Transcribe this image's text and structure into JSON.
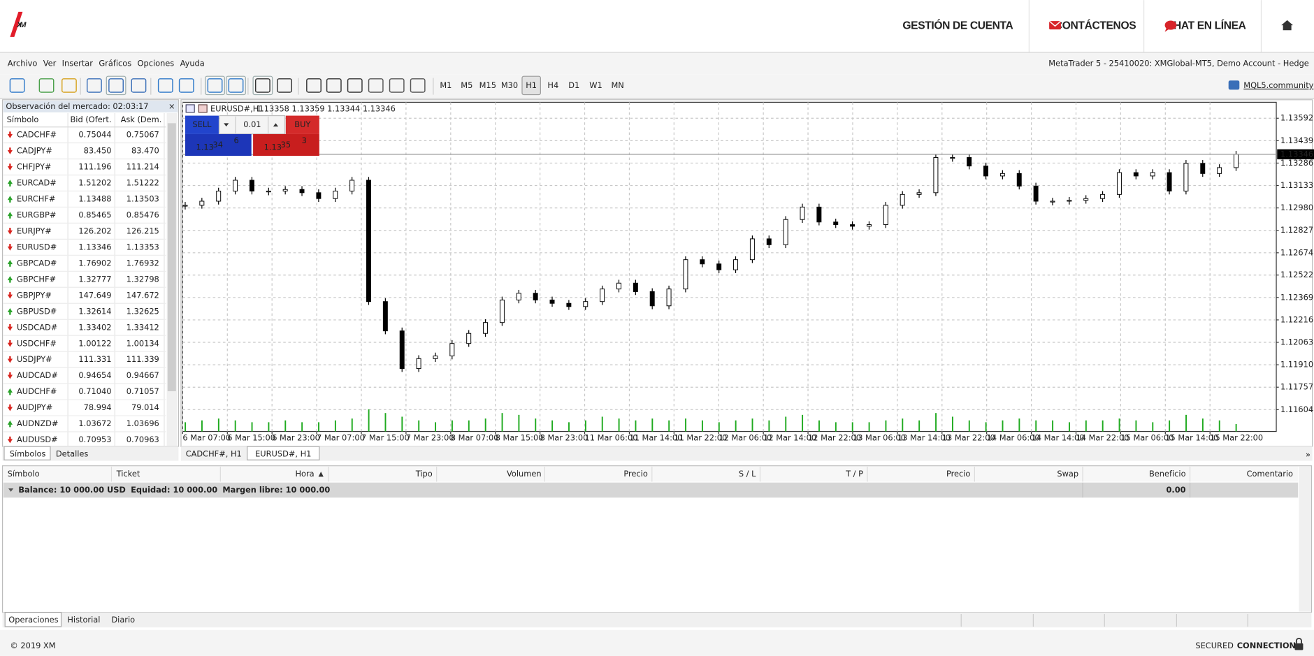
{
  "header": {
    "logo": "XM",
    "nav": [
      "GESTIÓN DE CUENTA",
      "CONTÁCTENOS",
      "CHAT EN LÍNEA"
    ]
  },
  "menu": {
    "items": [
      "Archivo",
      "Ver",
      "Insertar",
      "Gráficos",
      "Opciones",
      "Ayuda"
    ],
    "account": "MetaTrader 5 - 25410020: XMGlobal-MT5, Demo Account - Hedge"
  },
  "toolbar": {
    "timeframes": [
      "M1",
      "M5",
      "M15",
      "M30",
      "H1",
      "H4",
      "D1",
      "W1",
      "MN"
    ],
    "active": "H1",
    "community": "MQL5.community"
  },
  "market_watch": {
    "title": "Observación del mercado: 02:03:17",
    "columns": [
      "Símbolo",
      "Bid (Ofert.",
      "Ask (Dem."
    ],
    "rows": [
      {
        "symbol": "CADCHF#",
        "dir": "down",
        "bid": "0.75044",
        "ask": "0.75067",
        "bid_color": "#1a3fd8",
        "ask_color": "#e0201c"
      },
      {
        "symbol": "CADJPY#",
        "dir": "down",
        "bid": "83.450",
        "ask": "83.470",
        "bid_color": "#e0201c",
        "ask_color": "#e0201c"
      },
      {
        "symbol": "CHFJPY#",
        "dir": "down",
        "bid": "111.196",
        "ask": "111.214",
        "bid_color": "#e0201c",
        "ask_color": "#e0201c"
      },
      {
        "symbol": "EURCAD#",
        "dir": "up",
        "bid": "1.51202",
        "ask": "1.51222",
        "bid_color": "#1a3fd8",
        "ask_color": "#1a3fd8"
      },
      {
        "symbol": "EURCHF#",
        "dir": "up",
        "bid": "1.13488",
        "ask": "1.13503",
        "bid_color": "#1a3fd8",
        "ask_color": "#1a3fd8"
      },
      {
        "symbol": "EURGBP#",
        "dir": "up",
        "bid": "0.85465",
        "ask": "0.85476",
        "bid_color": "#1a3fd8",
        "ask_color": "#1a3fd8"
      },
      {
        "symbol": "EURJPY#",
        "dir": "down",
        "bid": "126.202",
        "ask": "126.215",
        "bid_color": "#e0201c",
        "ask_color": "#e0201c"
      },
      {
        "symbol": "EURUSD#",
        "dir": "down",
        "bid": "1.13346",
        "ask": "1.13353",
        "bid_color": "#1a3fd8",
        "ask_color": "#e0201c"
      },
      {
        "symbol": "GBPCAD#",
        "dir": "up",
        "bid": "1.76902",
        "ask": "1.76932",
        "bid_color": "#e0201c",
        "ask_color": "#1a3fd8"
      },
      {
        "symbol": "GBPCHF#",
        "dir": "up",
        "bid": "1.32777",
        "ask": "1.32798",
        "bid_color": "#1a3fd8",
        "ask_color": "#1a3fd8"
      },
      {
        "symbol": "GBPJPY#",
        "dir": "down",
        "bid": "147.649",
        "ask": "147.672",
        "bid_color": "#e0201c",
        "ask_color": "#e0201c"
      },
      {
        "symbol": "GBPUSD#",
        "dir": "up",
        "bid": "1.32614",
        "ask": "1.32625",
        "bid_color": "#1a3fd8",
        "ask_color": "#e0201c"
      },
      {
        "symbol": "USDCAD#",
        "dir": "down",
        "bid": "1.33402",
        "ask": "1.33412",
        "bid_color": "#e0201c",
        "ask_color": "#1a3fd8"
      },
      {
        "symbol": "USDCHF#",
        "dir": "down",
        "bid": "1.00122",
        "ask": "1.00134",
        "bid_color": "#1a3fd8",
        "ask_color": "#1a3fd8"
      },
      {
        "symbol": "USDJPY#",
        "dir": "down",
        "bid": "111.331",
        "ask": "111.339",
        "bid_color": "#e0201c",
        "ask_color": "#e0201c"
      },
      {
        "symbol": "AUDCAD#",
        "dir": "down",
        "bid": "0.94654",
        "ask": "0.94667",
        "bid_color": "#e0201c",
        "ask_color": "#1a3fd8"
      },
      {
        "symbol": "AUDCHF#",
        "dir": "up",
        "bid": "0.71040",
        "ask": "0.71057",
        "bid_color": "#1a3fd8",
        "ask_color": "#1a3fd8"
      },
      {
        "symbol": "AUDJPY#",
        "dir": "down",
        "bid": "78.994",
        "ask": "79.014",
        "bid_color": "#e0201c",
        "ask_color": "#e0201c"
      },
      {
        "symbol": "AUDNZD#",
        "dir": "up",
        "bid": "1.03672",
        "ask": "1.03696",
        "bid_color": "#1a3fd8",
        "ask_color": "#1a3fd8"
      },
      {
        "symbol": "AUDUSD#",
        "dir": "down",
        "bid": "0.70953",
        "ask": "0.70963",
        "bid_color": "#1a3fd8",
        "ask_color": "#e0201c"
      }
    ],
    "tabs": [
      "Símbolos",
      "Detalles"
    ]
  },
  "chart": {
    "symbol": "EURUSD#,H1",
    "ohlc": "1.13358 1.13359 1.13344 1.13346",
    "trade": {
      "sell": "SELL",
      "buy": "BUY",
      "lot": "0.01",
      "sell_price": [
        "1.13",
        "34",
        "6"
      ],
      "buy_price": [
        "1.13",
        "35",
        "3"
      ]
    },
    "current": {
      "value": 1.13346,
      "label": "1.13346"
    },
    "ylim": [
      1.11455,
      1.13701
    ],
    "yticks": [
      1.13592,
      1.13439,
      1.13286,
      1.13133,
      {
        "value": 1.1298,
        "label": "1.12980"
      },
      1.12827,
      1.12674,
      1.12522,
      1.12369,
      1.12216,
      1.12063,
      {
        "value": 1.1191,
        "label": "1.11910"
      },
      1.11757,
      1.11604
    ],
    "xticks": [
      "6 Mar 07:00",
      "6 Mar 15:00",
      "6 Mar 23:00",
      "7 Mar 07:00",
      "7 Mar 15:00",
      "7 Mar 23:00",
      "8 Mar 07:00",
      "8 Mar 15:00",
      "8 Mar 23:00",
      "11 Mar 06:00",
      "11 Mar 14:00",
      "11 Mar 22:00",
      "12 Mar 06:00",
      "12 Mar 14:00",
      "12 Mar 22:00",
      "13 Mar 06:00",
      "13 Mar 14:00",
      "13 Mar 22:00",
      "14 Mar 06:00",
      "14 Mar 14:00",
      "14 Mar 22:00",
      "15 Mar 06:00",
      "15 Mar 14:00",
      "15 Mar 22:00"
    ],
    "closes": [
      1.12998,
      1.13026,
      1.13095,
      1.13169,
      1.13095,
      1.13095,
      1.13106,
      1.13084,
      1.13044,
      1.13095,
      1.13169,
      1.12341,
      1.12141,
      1.11884,
      1.11952,
      1.1197,
      1.12055,
      1.12124,
      1.12198,
      1.12352,
      1.12398,
      1.12352,
      1.12329,
      1.12307,
      1.12341,
      1.12427,
      1.12467,
      1.12409,
      1.12312,
      1.12427,
      1.12627,
      1.12598,
      1.12558,
      1.12627,
      1.12769,
      1.12729,
      1.12901,
      1.12986,
      1.12884,
      1.12866,
      1.12855,
      1.12866,
      1.12998,
      1.13072,
      1.13084,
      1.13324,
      1.13324,
      1.13266,
      1.13198,
      1.13215,
      1.13129,
      1.13026,
      1.13026,
      1.13032,
      1.13044,
      1.13072,
      1.13221,
      1.13198,
      1.13221,
      1.13095,
      1.13284,
      1.13215,
      1.13255,
      1.13346
    ],
    "volumes": [
      5,
      6,
      7,
      6,
      5,
      5,
      6,
      5,
      5,
      6,
      7,
      12,
      10,
      8,
      6,
      5,
      6,
      6,
      7,
      10,
      9,
      7,
      6,
      5,
      6,
      8,
      7,
      6,
      7,
      6,
      7,
      6,
      5,
      6,
      7,
      6,
      8,
      9,
      6,
      5,
      5,
      5,
      6,
      7,
      6,
      10,
      8,
      6,
      5,
      6,
      7,
      6,
      6,
      5,
      6,
      6,
      7,
      6,
      5,
      6,
      9,
      7,
      6,
      4
    ],
    "tabs": [
      "CADCHF#, H1",
      "EURUSD#, H1"
    ],
    "active_tab": 1,
    "up_color": "#ffffff",
    "down_color": "#000000",
    "volume_color": "#1faa1f"
  },
  "trade_panel": {
    "columns": [
      "Símbolo",
      "Ticket",
      "Hora",
      "Tipo",
      "Volumen",
      "Precio",
      "S / L",
      "T / P",
      "Precio",
      "Swap",
      "Beneficio",
      "Comentario"
    ],
    "balance": [
      "Balance: 10 000.00 USD",
      "Equidad: 10 000.00",
      "Margen libre: 10 000.00"
    ],
    "profit": "0.00",
    "tabs": [
      "Operaciones",
      "Historial",
      "Diario"
    ]
  },
  "footer": {
    "copyright": "© 2019 XM",
    "secured": "SECURED",
    "connection": "CONNECTION"
  }
}
